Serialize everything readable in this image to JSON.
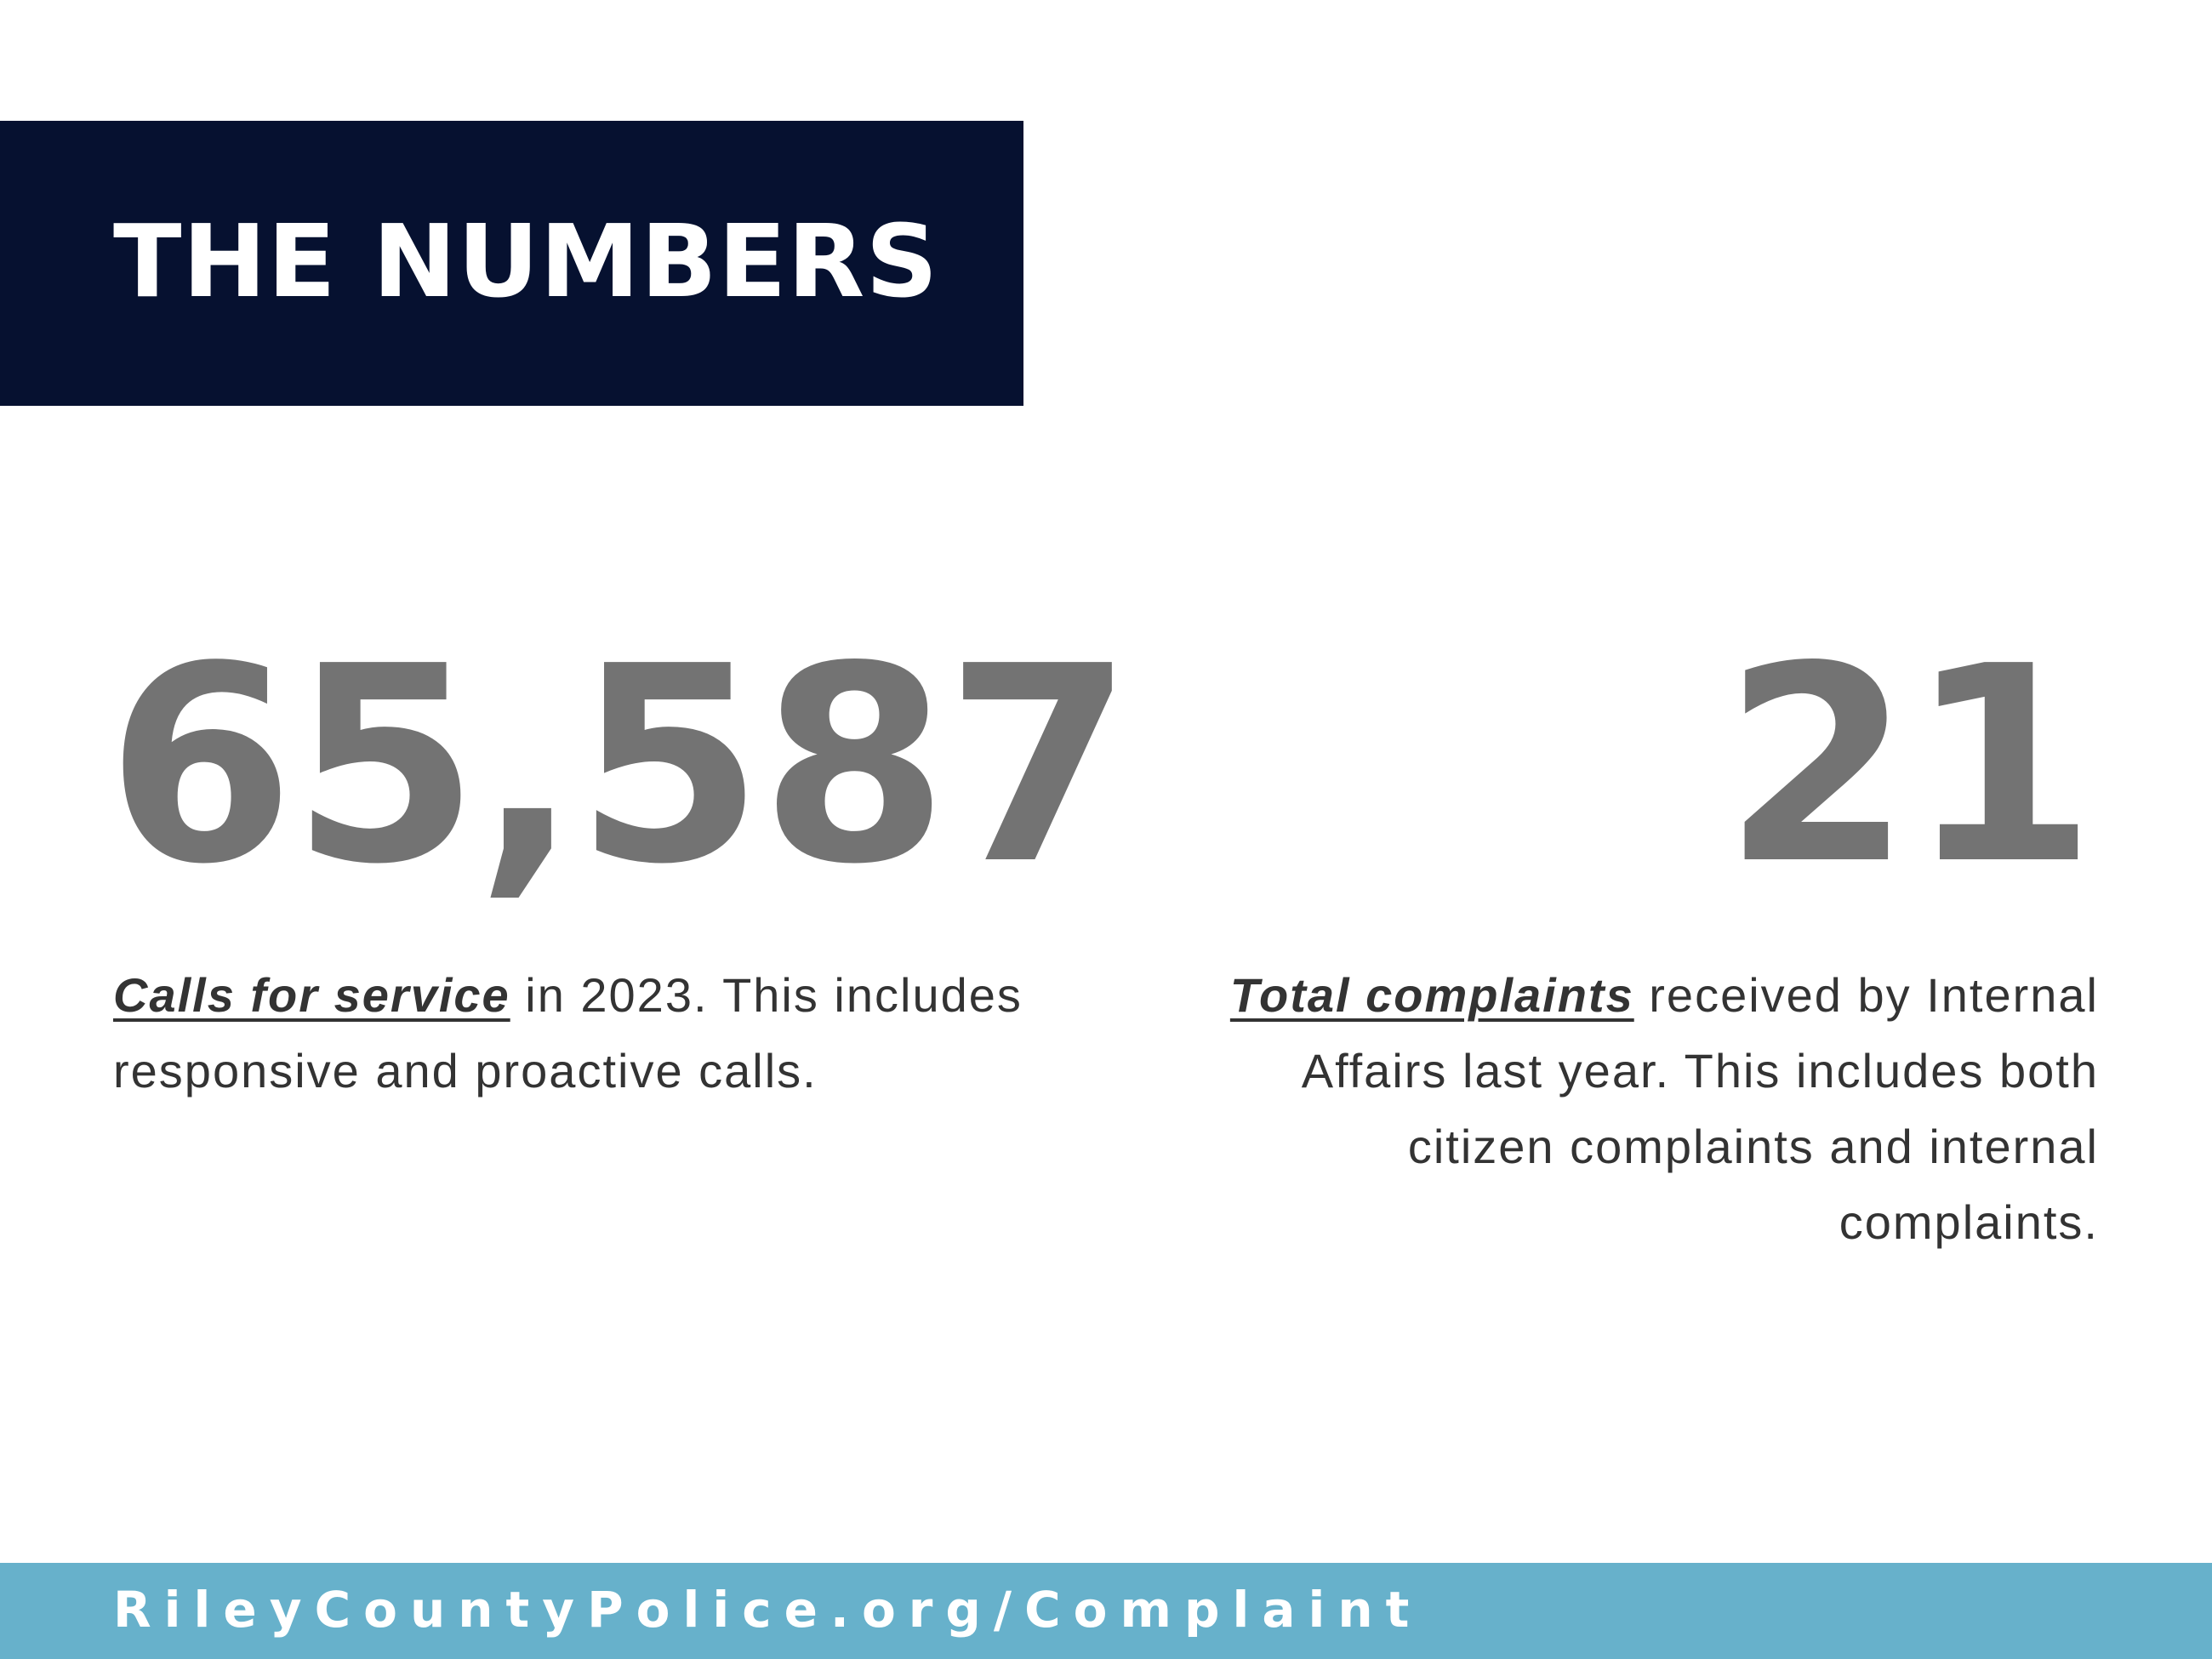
{
  "header": {
    "title": "THE NUMBERS",
    "background_color": "#061130"
  },
  "stats": [
    {
      "value": "65,587",
      "highlight": "Calls for service",
      "text": " in 2023. This includes responsive and proactive calls."
    },
    {
      "value": "21",
      "highlight": "Total complaints",
      "text": " received by Internal Affairs last year. This includes both citizen complaints and internal complaints."
    }
  ],
  "footer": {
    "link": "RileyCountyPolice.org/Complaint",
    "background_color": "#67b1cb"
  },
  "colors": {
    "number": "#737373",
    "body_text": "#333333"
  }
}
